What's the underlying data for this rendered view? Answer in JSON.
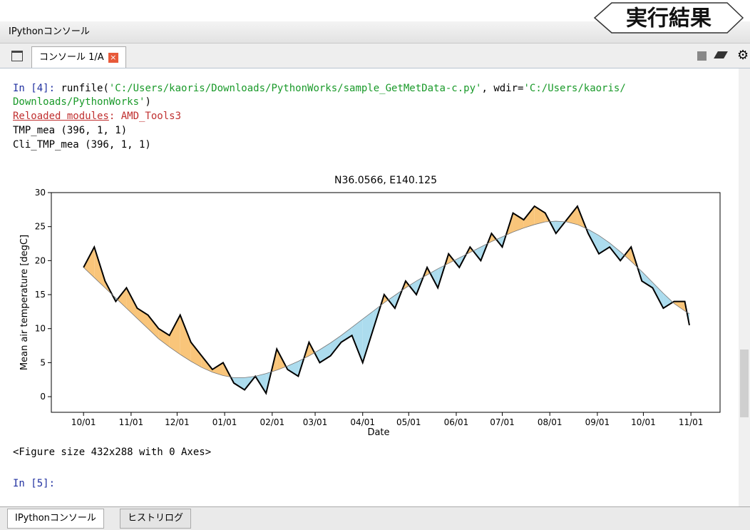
{
  "window": {
    "title": "IPythonコンソール",
    "tab": "コンソール 1/A",
    "badge": "実行結果",
    "bottom_tabs": [
      "IPythonコンソール",
      "ヒストリログ"
    ]
  },
  "console": {
    "line1": [
      "In [4]:",
      " runfile(",
      "'C:/Users/kaoris/Downloads/PythonWorks/sample_GetMetData-c.py'",
      ", wdir=",
      "'C:/Users/kaoris/"
    ],
    "line2": [
      "Downloads/PythonWorks'",
      ")"
    ],
    "line3": [
      "Reloaded modules",
      ": AMD_Tools3"
    ],
    "line4": "TMP_mea (396, 1, 1)",
    "line5": "Cli_TMP_mea (396, 1, 1)",
    "figure_note": "<Figure size 432x288 with 0 Axes>",
    "prompt": "In [5]:"
  },
  "chart_data": {
    "type": "line",
    "title": "N36.0566, E140.125",
    "x_label": "Date",
    "y_label": "Mean air temperature [degC]",
    "x": [
      0,
      7,
      14,
      21,
      28,
      35,
      42,
      49,
      56,
      63,
      70,
      77,
      84,
      91,
      98,
      105,
      112,
      119,
      126,
      133,
      140,
      147,
      154,
      161,
      168,
      175,
      182,
      189,
      196,
      203,
      210,
      217,
      224,
      231,
      238,
      245,
      252,
      259,
      266,
      273,
      280,
      287,
      294,
      301,
      308,
      315,
      322,
      329,
      336,
      343,
      350,
      357,
      364,
      371,
      378,
      385,
      392,
      395
    ],
    "series": [
      {
        "color": "#000000",
        "values": [
          19,
          22,
          17,
          14,
          16,
          13,
          12,
          10,
          9,
          12,
          8,
          6,
          4,
          5,
          2,
          1,
          3,
          0.5,
          7,
          4,
          3,
          8,
          5,
          6,
          8,
          9,
          5,
          10,
          15,
          13,
          17,
          15,
          19,
          16,
          21,
          19,
          22,
          20,
          24,
          22,
          27,
          26,
          28,
          27,
          24,
          26,
          28,
          24,
          21,
          22,
          20,
          22,
          17,
          16,
          13,
          14,
          14,
          10.5
        ]
      },
      {
        "color": "#777777",
        "values": [
          19,
          17.5,
          16,
          14.5,
          13,
          11.5,
          10,
          8.5,
          7.3,
          6.2,
          5.2,
          4.3,
          3.6,
          3.1,
          2.8,
          2.8,
          3,
          3.4,
          3.9,
          4.5,
          5.2,
          6,
          6.9,
          7.9,
          9,
          10.2,
          11.4,
          12.6,
          13.8,
          14.9,
          16,
          17,
          17.9,
          18.8,
          19.6,
          20.4,
          21.2,
          22,
          22.8,
          23.5,
          24.2,
          24.8,
          25.3,
          25.7,
          25.8,
          25.7,
          25.3,
          24.6,
          23.7,
          22.6,
          21.3,
          19.9,
          18.4,
          16.8,
          15.2,
          13.7,
          12.6,
          12.2
        ]
      }
    ],
    "fill_above": "#f9c57a",
    "fill_below": "#acdcee",
    "xlim": [
      -21,
      415
    ],
    "xticks": [
      {
        "value": 0,
        "label": "10/01"
      },
      {
        "value": 31,
        "label": "11/01"
      },
      {
        "value": 61,
        "label": "12/01"
      },
      {
        "value": 92,
        "label": "01/01"
      },
      {
        "value": 123,
        "label": "02/01"
      },
      {
        "value": 151,
        "label": "03/01"
      },
      {
        "value": 182,
        "label": "04/01"
      },
      {
        "value": 212,
        "label": "05/01"
      },
      {
        "value": 243,
        "label": "06/01"
      },
      {
        "value": 273,
        "label": "07/01"
      },
      {
        "value": 304,
        "label": "08/01"
      },
      {
        "value": 335,
        "label": "09/01"
      },
      {
        "value": 365,
        "label": "10/01"
      },
      {
        "value": 396,
        "label": "11/01"
      }
    ],
    "ylim": [
      -2.3,
      30
    ],
    "yticks": [
      0,
      5,
      10,
      15,
      20,
      25,
      30
    ]
  }
}
